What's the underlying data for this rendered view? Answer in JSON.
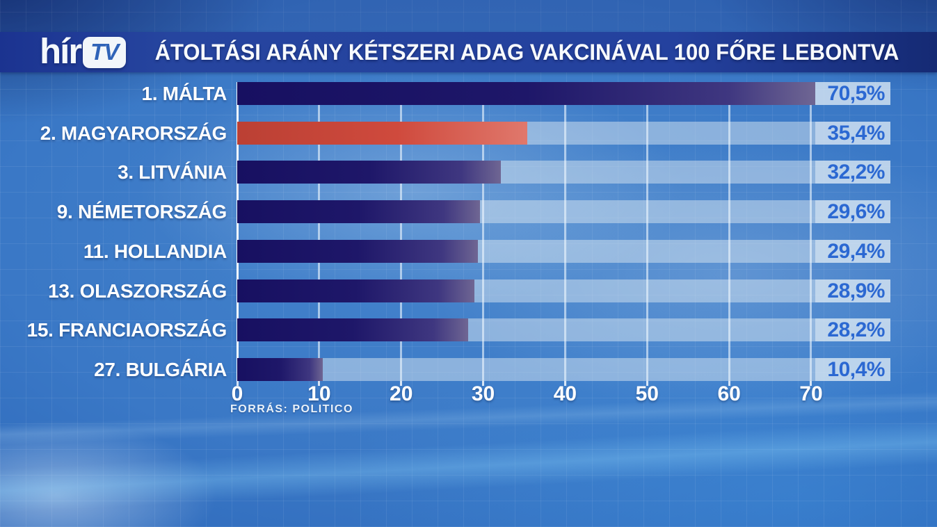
{
  "logo": {
    "hir": "hír",
    "tv": "TV"
  },
  "header": {
    "title": "ÁTOLTÁSI ARÁNY KÉTSZERI ADAG VAKCINÁVAL 100 FŐRE LEBONTVA"
  },
  "chart_data": {
    "type": "bar",
    "orientation": "horizontal",
    "title": "ÁTOLTÁSI ARÁNY KÉTSZERI ADAG VAKCINÁVAL 100 FŐRE LEBONTVA",
    "source": "FORRÁS: POLITICO",
    "categories": [
      "1. MÁLTA",
      "2. MAGYARORSZÁG",
      "3. LITVÁNIA",
      "9. NÉMETORSZÁG",
      "11. HOLLANDIA",
      "13. OLASZORSZÁG",
      "15. FRANCIAORSZÁG",
      "27. BULGÁRIA"
    ],
    "values": [
      70.5,
      35.4,
      32.2,
      29.6,
      29.4,
      28.9,
      28.2,
      10.4
    ],
    "value_labels": [
      "70,5%",
      "35,4%",
      "32,2%",
      "29,6%",
      "29,4%",
      "28,9%",
      "28,2%",
      "10,4%"
    ],
    "highlight_index": 1,
    "x_ticks": [
      0,
      10,
      20,
      30,
      40,
      50,
      60,
      70
    ],
    "xlim": [
      0,
      70
    ],
    "grid": true,
    "legend": "none",
    "colors": {
      "bar": "#1b1464",
      "bar_highlight": "#cf4a3d",
      "value_text": "#2b68d2",
      "label_text": "#ffffff",
      "track": "#a8c2da",
      "background": "#3572c2"
    }
  }
}
